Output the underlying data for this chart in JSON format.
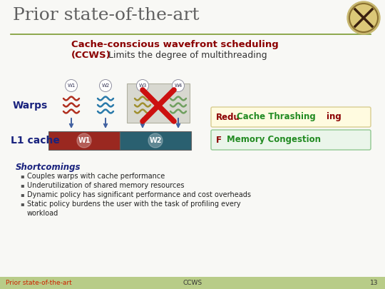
{
  "title": "Prior state-of-the-art",
  "slide_bg": "#f8f8f5",
  "title_color": "#606060",
  "title_fontsize": 18,
  "ccws_title_bold": "Cache-conscious wavefront scheduling\n(CCWS)",
  "ccws_title_color": "#8b0000",
  "ccws_subtitle": "Limits the degree of multithreading",
  "ccws_subtitle_color": "#333333",
  "warps_label": "Warps",
  "l1_label": "L1 cache",
  "label_color": "#1a237e",
  "label_fontsize": 10,
  "warp_labels": [
    "W1",
    "W2",
    "W3",
    "W4"
  ],
  "warp_colors": [
    "#b03020",
    "#2a7aaa",
    "#a09030",
    "#70a060"
  ],
  "blocked_box_color": "#d8d8d0",
  "cache_colors": [
    "#9a2820",
    "#2a6070"
  ],
  "cache_labels": [
    "W1",
    "W2"
  ],
  "arrow_color": "#4060a0",
  "box1_color": "#fffbe0",
  "box1_edge": "#d8cc90",
  "box2_color": "#eaf5ea",
  "box2_edge": "#90c890",
  "reduce_text": "Redu",
  "reduce_color": "#8b0000",
  "cache_thrash_text": "Cache Thrashing",
  "cache_thrash_color": "#228B22",
  "ing_text": "ing",
  "ing_color": "#8b0000",
  "fixed_text": "F",
  "fixed_color": "#8b0000",
  "mem_cong_text": "Memory Congestion",
  "mem_cong_color": "#228B22",
  "shortcomings_title": "Shortcomings",
  "shortcomings_color": "#1a237e",
  "bullets": [
    "Couples warps with cache performance",
    "Underutilization of shared memory resources",
    "Dynamic policy has significant performance and cost overheads",
    "Static policy burdens the user with the task of profiling every\nworkload"
  ],
  "bullet_color": "#222222",
  "footer_left": "Prior state-of-the-art",
  "footer_left_color": "#cc2200",
  "footer_bg": "#b8cc88",
  "footer_mid": "CCWS",
  "footer_mid_color": "#333333",
  "page_num": "13",
  "title_line_color": "#7a9a30"
}
